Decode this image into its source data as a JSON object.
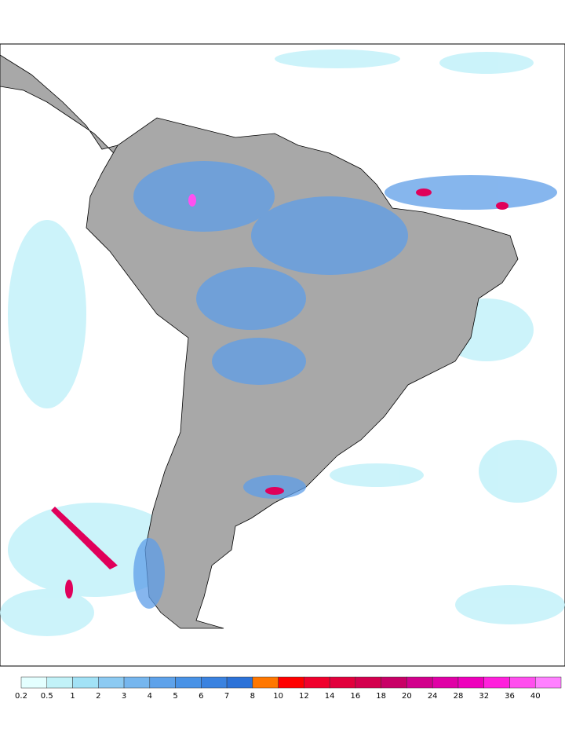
{
  "colorbar": {
    "levels": [
      0.2,
      0.5,
      1,
      2,
      3,
      4,
      5,
      6,
      7,
      8,
      10,
      12,
      14,
      16,
      18,
      20,
      24,
      28,
      32,
      36,
      40
    ],
    "colors": [
      "#e4ffff",
      "#c2f2f8",
      "#a2e2f6",
      "#8ccaf2",
      "#76b6ee",
      "#5ea2ea",
      "#4892e6",
      "#3a82e0",
      "#2c72d8",
      "#ff7700",
      "#ff0000",
      "#f0002c",
      "#e2003c",
      "#d4004e",
      "#c80066",
      "#d2008c",
      "#e000a6",
      "#ee00bc",
      "#ff20dc",
      "#ff4eee",
      "#ff80ff"
    ]
  }
}
